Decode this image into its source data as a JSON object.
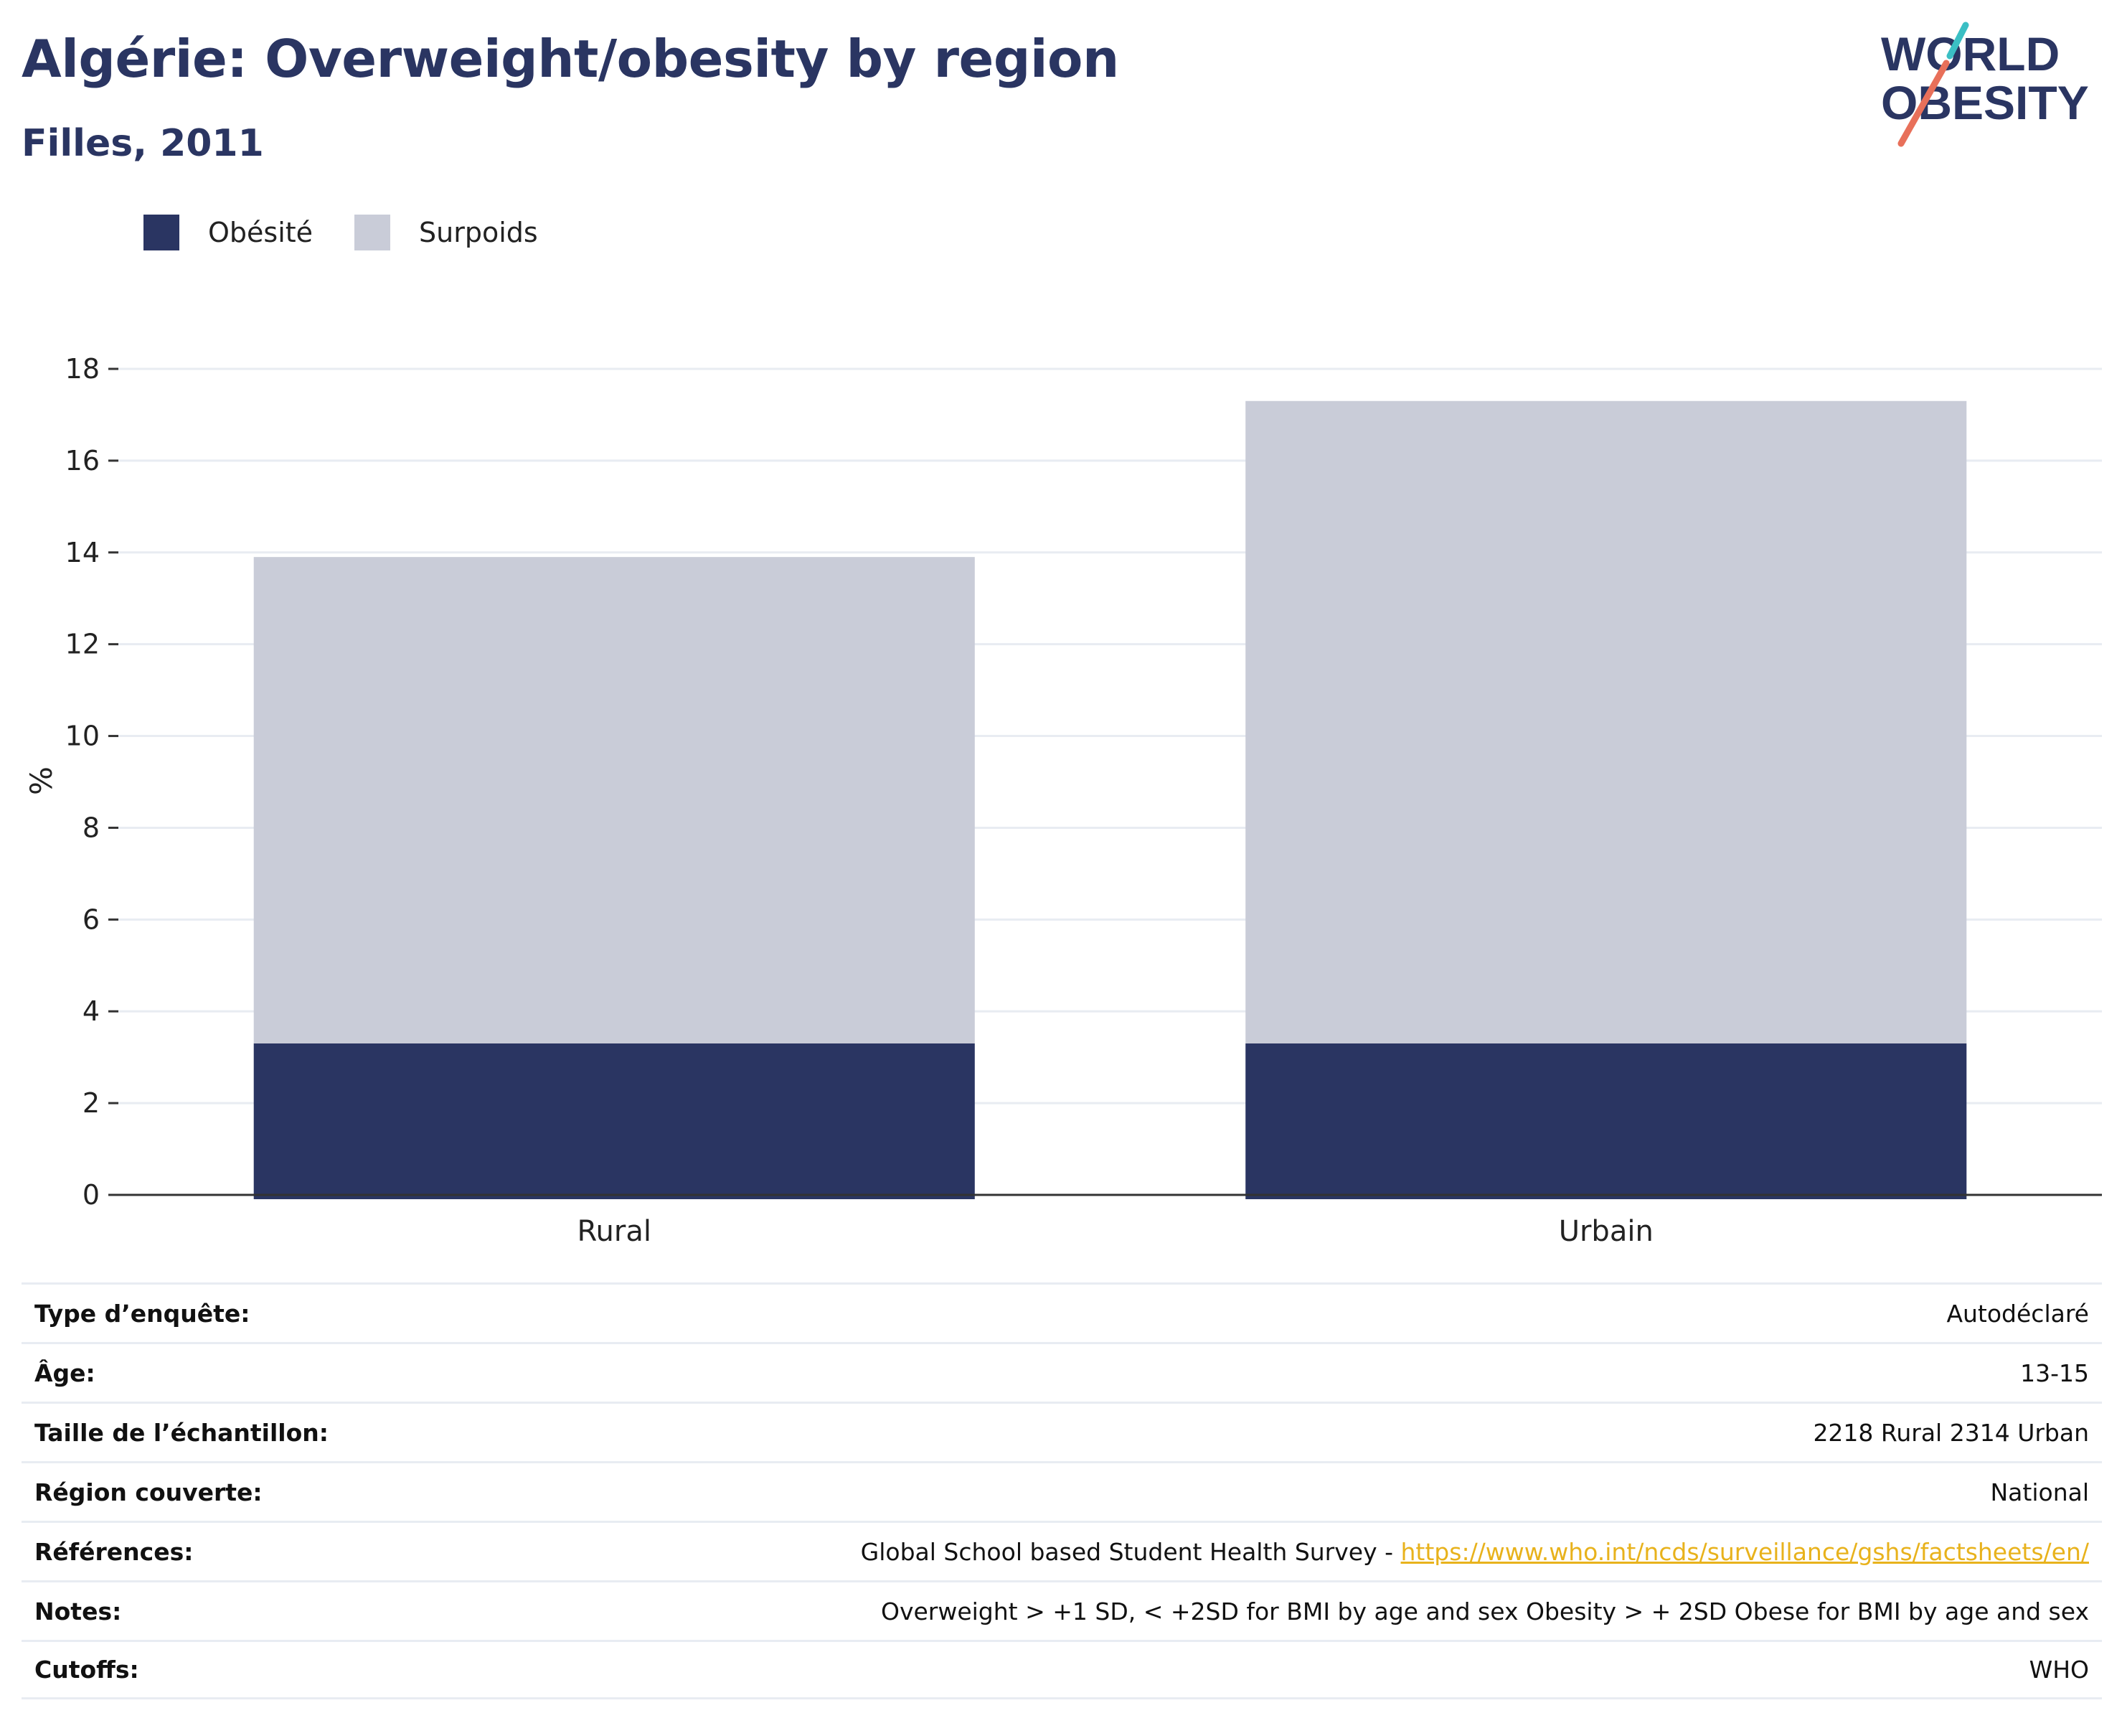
{
  "header": {
    "title": "Algérie: Overweight/obesity by region",
    "subtitle": "Filles, 2011"
  },
  "logo": {
    "line1": "WORLD",
    "line2": "OBESITY",
    "text_color": "#2a3562",
    "slash_top_color": "#3bbfc4",
    "slash_bottom_color": "#e8705a"
  },
  "colors": {
    "obesite": "#2a3562",
    "surpoids": "#c9ccd8",
    "grid": "#e8ecf2",
    "axis": "#333333"
  },
  "chart_data": {
    "type": "bar",
    "stacked": true,
    "categories": [
      "Rural",
      "Urbain"
    ],
    "series": [
      {
        "name": "Obésité",
        "values": [
          3.3,
          3.3
        ],
        "color": "#2a3562"
      },
      {
        "name": "Surpoids",
        "values": [
          10.6,
          14.0
        ],
        "color": "#c9ccd8"
      }
    ],
    "ylabel": "%",
    "xlabel": "",
    "ylim": [
      0,
      18
    ],
    "yticks": [
      "0",
      "2",
      "4",
      "6",
      "8",
      "10",
      "12",
      "14",
      "16",
      "18"
    ],
    "grid": true,
    "legend_position": "top-left"
  },
  "info": [
    {
      "label": "Type d’enquête:",
      "value": "Autodéclaré"
    },
    {
      "label": "Âge:",
      "value": "13-15"
    },
    {
      "label": "Taille de l’échantillon:",
      "value": "2218 Rural 2314 Urban"
    },
    {
      "label": "Région couverte:",
      "value": "National"
    },
    {
      "label": "Références:",
      "value": "Global School based Student Health Survey - ",
      "link": "https://www.who.int/ncds/surveillance/gshs/factsheets/en/"
    },
    {
      "label": "Notes:",
      "value": "Overweight > +1 SD, < +2SD for BMI by age and sex Obesity > + 2SD Obese for BMI by age and sex"
    },
    {
      "label": "Cutoffs:",
      "value": "WHO"
    }
  ]
}
